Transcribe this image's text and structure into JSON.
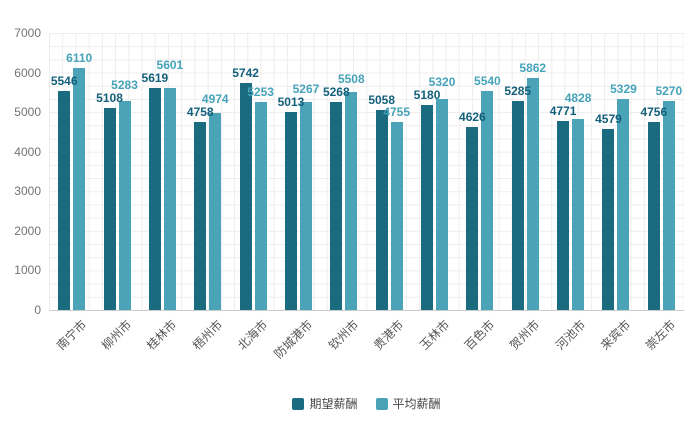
{
  "chart_data": {
    "type": "bar",
    "title": "",
    "xlabel": "",
    "ylabel": "",
    "categories": [
      "南宁市",
      "柳州市",
      "桂林市",
      "梧州市",
      "北海市",
      "防城港市",
      "钦州市",
      "贵港市",
      "玉林市",
      "百色市",
      "贺州市",
      "河池市",
      "来宾市",
      "崇左市"
    ],
    "series": [
      {
        "name": "期望薪酬",
        "color": "#1a6b80",
        "label_color": "#14607b",
        "values": [
          5546,
          5108,
          5619,
          4758,
          5742,
          5013,
          5268,
          5058,
          5180,
          4626,
          5285,
          4771,
          4579,
          4756
        ]
      },
      {
        "name": "平均薪酬",
        "color": "#4ba3b8",
        "label_color": "#46a3ba",
        "values": [
          6110,
          5283,
          5601,
          4974,
          5253,
          5267,
          5508,
          4755,
          5320,
          5540,
          5862,
          4828,
          5329,
          5270
        ]
      }
    ],
    "ylim": [
      0,
      7000
    ],
    "y_ticks": [
      0,
      1000,
      2000,
      3000,
      4000,
      5000,
      6000,
      7000
    ],
    "grid": true,
    "legend_position": "bottom"
  },
  "legend": {
    "items": [
      {
        "label": "期望薪酬",
        "color": "#1a6b80"
      },
      {
        "label": "平均薪酬",
        "color": "#4ba3b8"
      }
    ]
  },
  "colors": {
    "background": "#ffffff",
    "grid_line": "#ededed",
    "axis_line": "#cccccc",
    "axis_text": "#737373",
    "category_text": "#565656",
    "legend_text": "#464646"
  }
}
